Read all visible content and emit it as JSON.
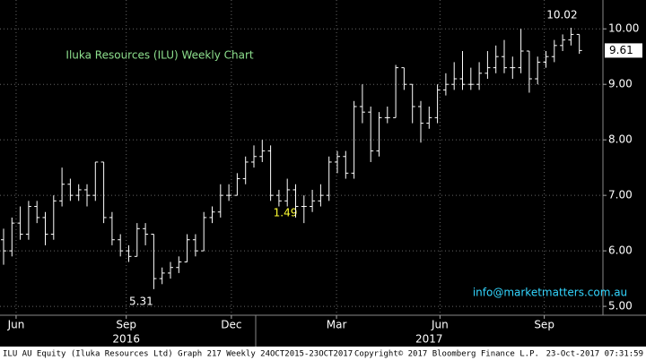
{
  "chart_data": {
    "type": "ohlc",
    "title": "Iluka Resources (ILU) Weekly Chart",
    "footer_left": "ILU AU Equity (Iluka Resources Ltd) Graph 217  Weekly 24OCT2015-23OCT2017",
    "footer_center": "Copyright© 2017 Bloomberg Finance L.P.",
    "footer_right": "23-Oct-2017 07:31:59",
    "annotations": [
      "1.49",
      "info@marketmatters.com.au"
    ],
    "color": "#ffffff",
    "grid": true,
    "ylim": [
      4.84,
      10.52
    ],
    "yticks": [
      {
        "value": 5,
        "label": "5.00"
      },
      {
        "value": 6,
        "label": "6.00"
      },
      {
        "value": 7,
        "label": "7.00"
      },
      {
        "value": 8,
        "label": "8.00"
      },
      {
        "value": 9,
        "label": "9.00"
      },
      {
        "value": 10,
        "label": "10.00"
      }
    ],
    "xticks": [
      {
        "value": 1.5,
        "label": "Jun"
      },
      {
        "value": 14.7,
        "label": "Sep"
      },
      {
        "value": 27.3,
        "label": "Dec"
      },
      {
        "value": 39.9,
        "label": "Mar"
      },
      {
        "value": 52.3,
        "label": "Jun"
      },
      {
        "value": 64.8,
        "label": "Sep"
      }
    ],
    "year_labels": [
      {
        "value": 14.7,
        "label": "2016"
      },
      {
        "value": 51,
        "label": "2017"
      }
    ],
    "open": [
      6.2,
      6.0,
      6.5,
      6.3,
      6.8,
      6.6,
      6.3,
      6.9,
      7.2,
      7.0,
      7.1,
      7.0,
      7.6,
      6.6,
      6.2,
      6.0,
      5.9,
      6.4,
      6.3,
      5.5,
      5.6,
      5.7,
      5.8,
      6.2,
      6.0,
      6.6,
      6.7,
      7.0,
      7.0,
      7.3,
      7.6,
      7.7,
      7.8,
      7.0,
      6.9,
      7.1,
      6.8,
      6.8,
      6.9,
      7.0,
      7.6,
      7.7,
      7.4,
      8.6,
      8.5,
      7.8,
      8.4,
      8.4,
      9.3,
      9.0,
      8.6,
      8.3,
      8.4,
      8.9,
      9.0,
      9.1,
      9.0,
      9.0,
      9.2,
      9.3,
      9.5,
      9.3,
      9.3,
      9.6,
      9.1,
      9.4,
      9.5,
      9.7,
      9.8,
      9.9
    ],
    "high": [
      6.4,
      6.6,
      6.8,
      6.9,
      6.9,
      6.7,
      7.0,
      7.5,
      7.3,
      7.2,
      7.2,
      7.6,
      7.6,
      6.7,
      6.3,
      6.1,
      6.5,
      6.5,
      6.3,
      5.7,
      5.8,
      5.9,
      6.3,
      6.3,
      6.7,
      6.8,
      7.2,
      7.2,
      7.4,
      7.7,
      7.9,
      8.0,
      7.9,
      7.1,
      7.3,
      7.2,
      7.0,
      7.1,
      7.2,
      7.7,
      7.8,
      7.8,
      8.7,
      9.0,
      8.6,
      8.5,
      8.6,
      9.35,
      9.3,
      9.0,
      8.7,
      8.6,
      9.0,
      9.2,
      9.4,
      9.6,
      9.3,
      9.4,
      9.6,
      9.7,
      9.8,
      9.5,
      10.0,
      9.6,
      9.5,
      9.6,
      9.8,
      9.9,
      10.02,
      9.9
    ],
    "low": [
      5.75,
      5.9,
      6.2,
      6.2,
      6.5,
      6.1,
      6.2,
      6.8,
      6.9,
      6.9,
      6.8,
      6.9,
      6.5,
      6.1,
      5.9,
      5.8,
      5.9,
      6.1,
      5.31,
      5.4,
      5.5,
      5.6,
      5.8,
      5.9,
      6.0,
      6.5,
      6.6,
      6.9,
      7.0,
      7.2,
      7.5,
      7.6,
      6.9,
      6.8,
      6.8,
      6.6,
      6.5,
      6.7,
      6.8,
      6.9,
      7.4,
      7.3,
      7.3,
      8.3,
      7.6,
      7.7,
      8.3,
      8.4,
      8.9,
      8.3,
      7.95,
      8.2,
      8.3,
      8.8,
      8.9,
      8.9,
      8.9,
      8.9,
      9.1,
      9.2,
      9.2,
      9.1,
      9.2,
      8.85,
      9.0,
      9.3,
      9.4,
      9.6,
      9.7,
      9.55
    ],
    "close": [
      6.0,
      6.5,
      6.3,
      6.8,
      6.6,
      6.3,
      6.9,
      7.2,
      7.0,
      7.1,
      7.0,
      7.6,
      6.6,
      6.2,
      6.0,
      5.9,
      6.4,
      6.3,
      5.5,
      5.6,
      5.7,
      5.8,
      6.2,
      6.0,
      6.6,
      6.7,
      7.0,
      7.0,
      7.3,
      7.6,
      7.7,
      7.8,
      7.0,
      6.9,
      7.1,
      6.8,
      6.8,
      6.9,
      7.0,
      7.6,
      7.7,
      7.4,
      8.6,
      8.5,
      7.8,
      8.4,
      8.4,
      9.3,
      9.0,
      8.6,
      8.3,
      8.4,
      8.9,
      9.0,
      9.1,
      9.0,
      9.0,
      9.2,
      9.3,
      9.5,
      9.3,
      9.3,
      9.6,
      9.1,
      9.4,
      9.5,
      9.7,
      9.8,
      9.9,
      9.61
    ]
  }
}
